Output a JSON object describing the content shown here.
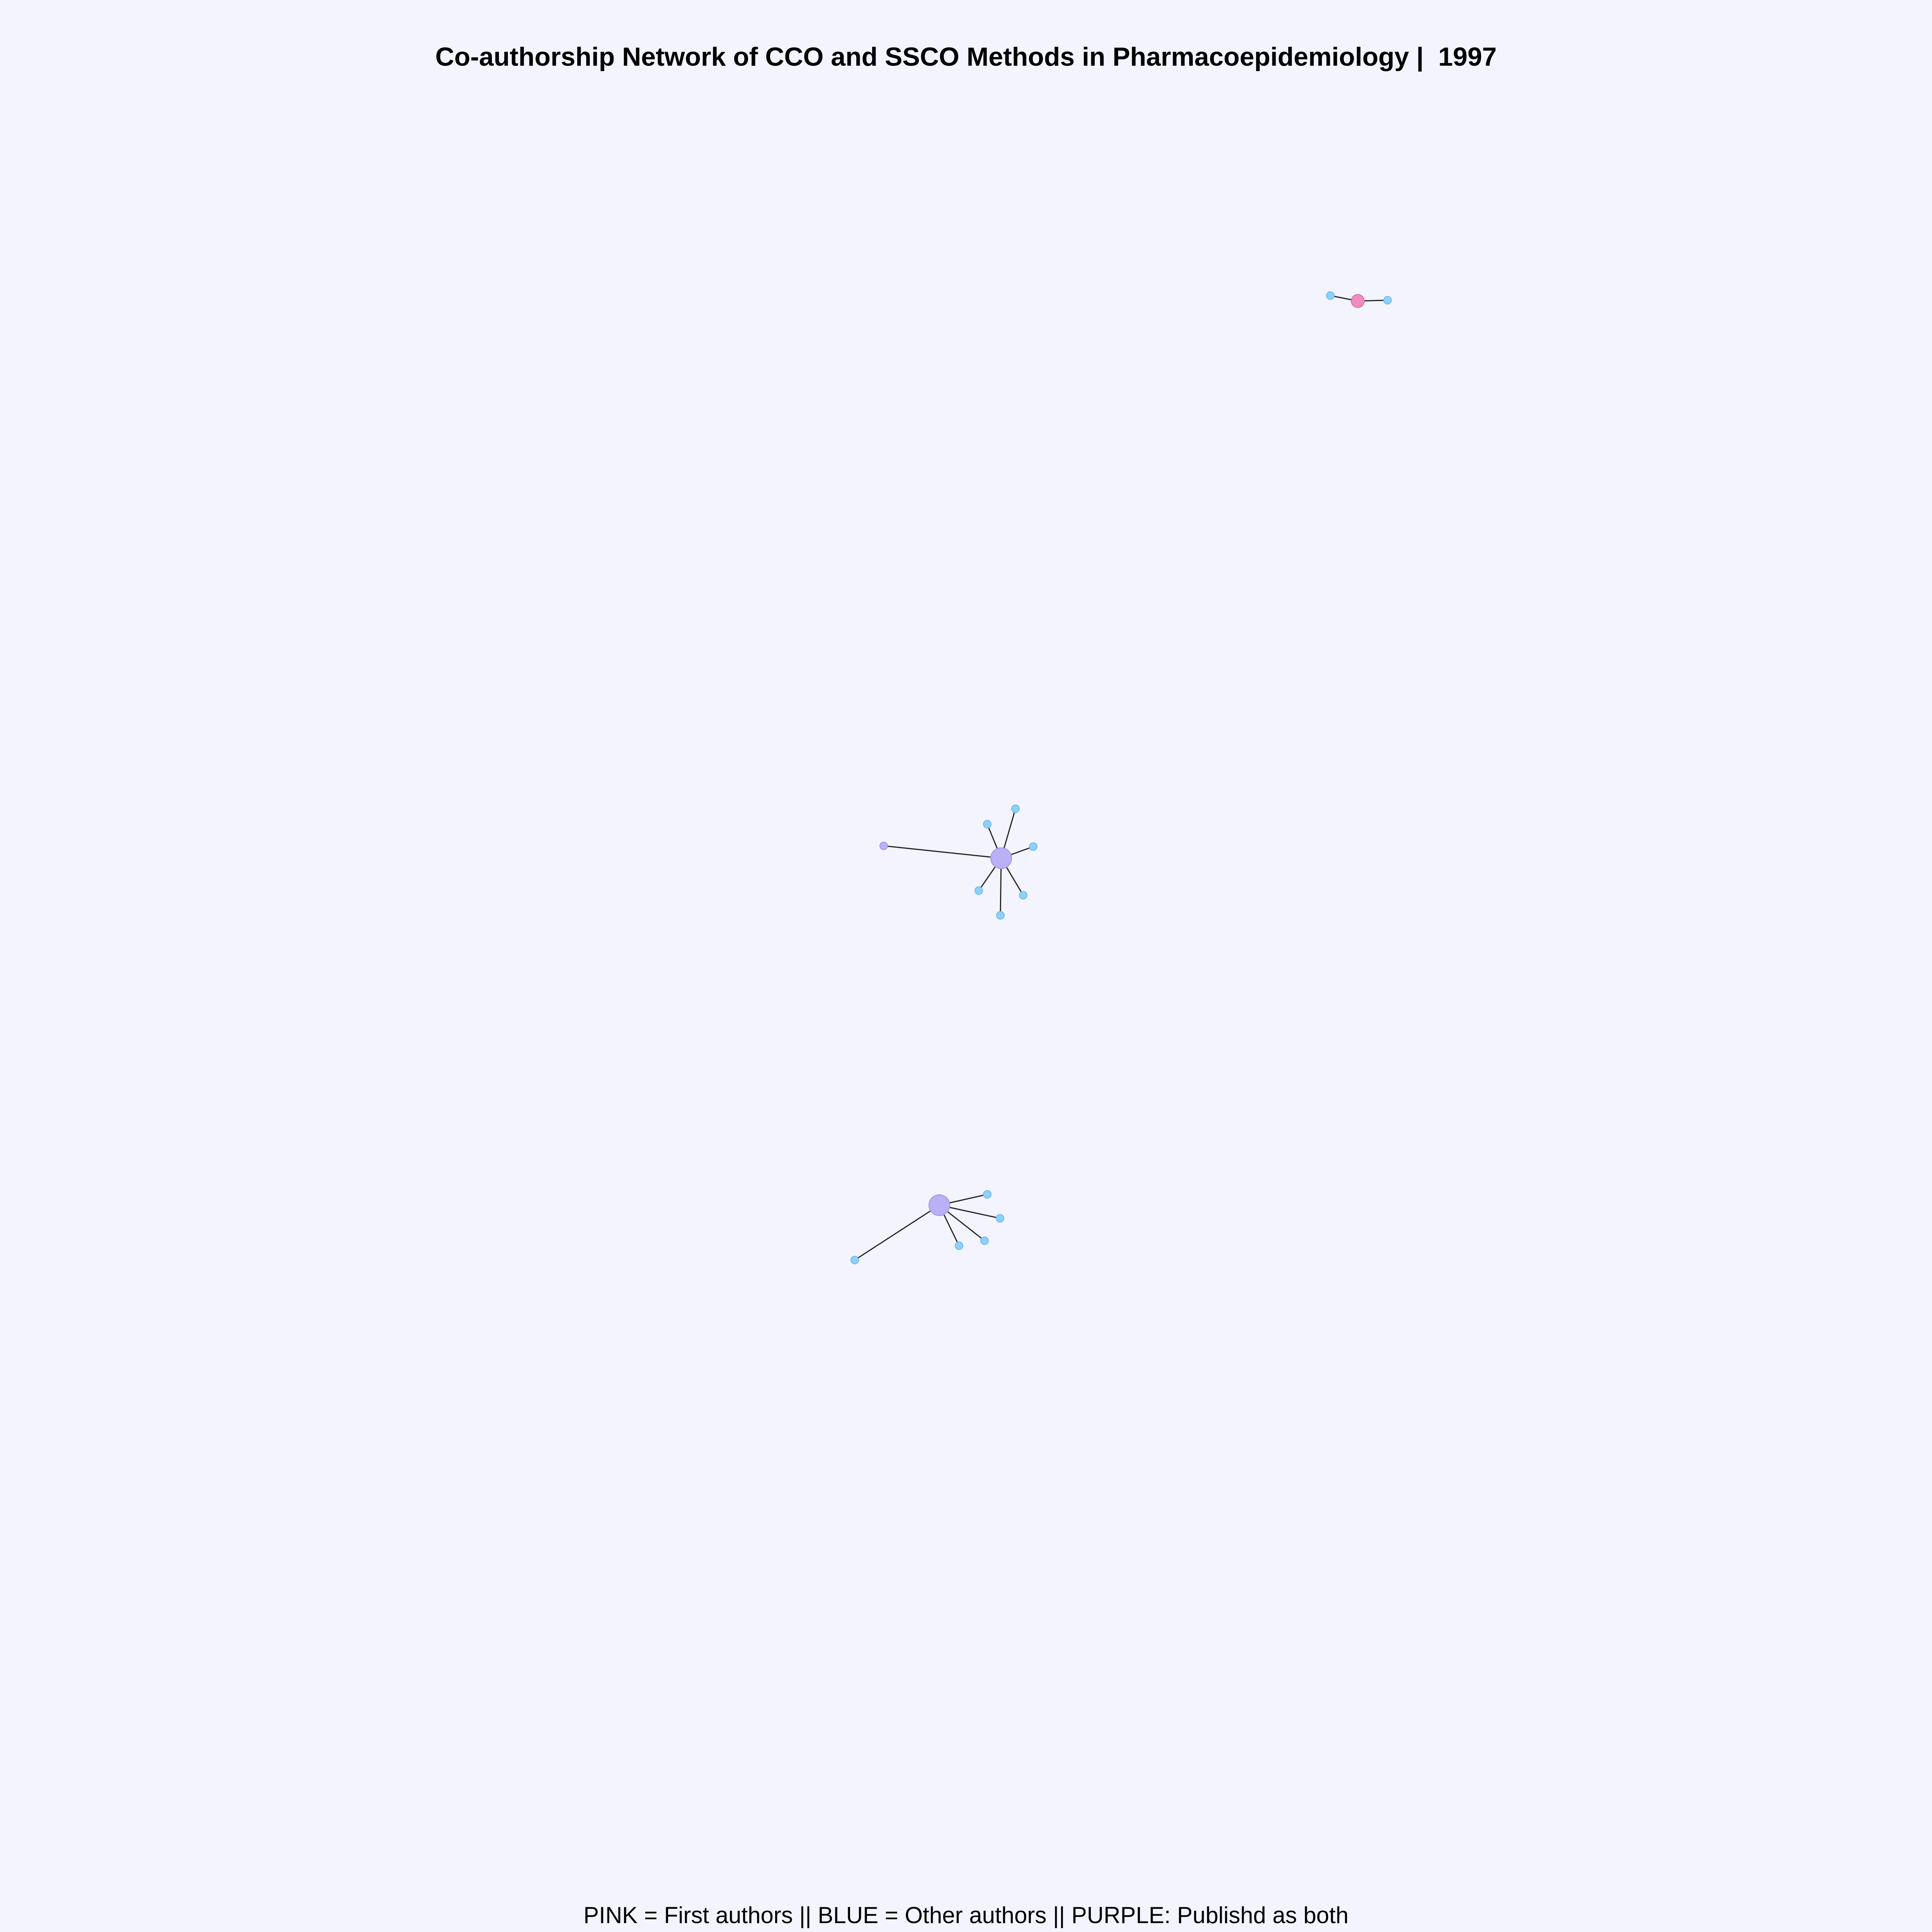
{
  "title": "Co-authorship Network of CCO and SSCO Methods in Pharmacoepidemiology |  1997",
  "caption": "PINK = First authors || BLUE = Other authors || PURPLE: Publishd as both",
  "colors": {
    "background": "#f3f4fe",
    "first_author": "#f08cc0",
    "other_author": "#8fd0f8",
    "both": "#b9b0f5",
    "edge": "#222222"
  },
  "legend": [
    {
      "color_name": "PINK",
      "meaning": "First authors"
    },
    {
      "color_name": "BLUE",
      "meaning": "Other authors"
    },
    {
      "color_name": "PURPLE",
      "meaning": "Publishd as both"
    }
  ],
  "components": [
    {
      "hub_role": "first_author",
      "spoke_roles": [
        "other_author",
        "other_author"
      ]
    },
    {
      "hub_role": "both",
      "spoke_roles": [
        "both",
        "other_author",
        "other_author",
        "other_author",
        "other_author",
        "other_author",
        "other_author"
      ]
    },
    {
      "hub_role": "both",
      "spoke_roles": [
        "other_author",
        "other_author",
        "other_author",
        "other_author",
        "other_author"
      ]
    }
  ]
}
